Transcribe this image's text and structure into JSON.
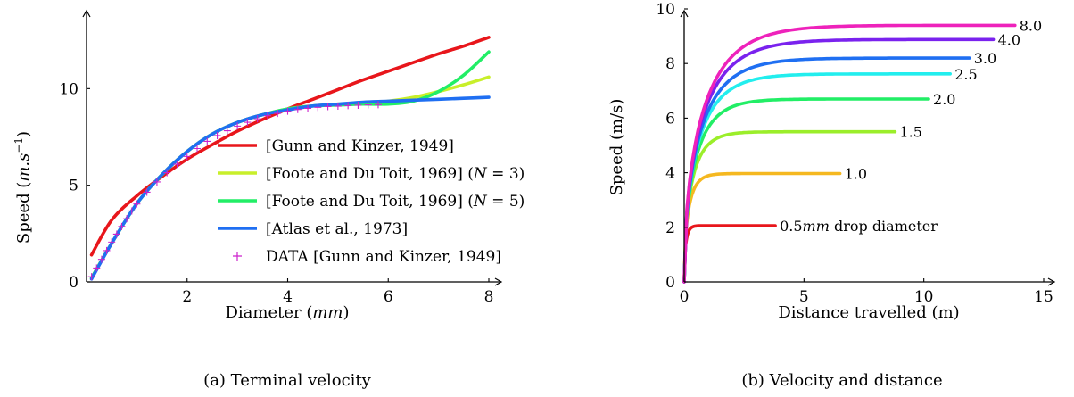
{
  "chart_data": [
    {
      "type": "line",
      "caption": "(a) Terminal velocity",
      "xlabel": "Diameter (mm)",
      "ylabel": "Speed (m.s⁻¹)",
      "xlim": [
        0,
        8
      ],
      "ylim": [
        0,
        13.2
      ],
      "xticks": [
        2,
        4,
        6,
        8
      ],
      "yticks": [
        0,
        5,
        10
      ],
      "grid": false,
      "legend_position": "bottom-right",
      "series": [
        {
          "name": "[Gunn and Kinzer, 1949]",
          "color": "#e8161b",
          "x": [
            0.1,
            0.5,
            1,
            1.5,
            2,
            2.5,
            3,
            3.5,
            4,
            4.5,
            5,
            5.5,
            6,
            6.5,
            7,
            7.5,
            8
          ],
          "y": [
            1.4,
            3.2,
            4.45,
            5.45,
            6.35,
            7.1,
            7.8,
            8.4,
            8.95,
            9.45,
            9.95,
            10.45,
            10.9,
            11.35,
            11.8,
            12.2,
            12.65
          ]
        },
        {
          "name": "[Foote and Du Toit, 1969] (N = 3)",
          "color": "#c8ef2a",
          "x": [
            0.1,
            0.5,
            1,
            1.5,
            2,
            2.5,
            3,
            3.5,
            4,
            4.5,
            5,
            5.5,
            6,
            6.5,
            7,
            7.5,
            8
          ],
          "y": [
            0.2,
            2.0,
            4.05,
            5.55,
            6.75,
            7.65,
            8.25,
            8.65,
            8.95,
            9.1,
            9.2,
            9.25,
            9.35,
            9.55,
            9.85,
            10.2,
            10.6
          ]
        },
        {
          "name": "[Foote and Du Toit, 1969] (N = 5)",
          "color": "#22ee66",
          "x": [
            0.1,
            0.5,
            1,
            1.5,
            2,
            2.5,
            3,
            3.5,
            4,
            4.5,
            5,
            5.5,
            6,
            6.5,
            7,
            7.5,
            8
          ],
          "y": [
            0.2,
            2.0,
            4.05,
            5.55,
            6.75,
            7.65,
            8.25,
            8.65,
            8.95,
            9.1,
            9.15,
            9.2,
            9.2,
            9.35,
            9.85,
            10.7,
            11.9
          ]
        },
        {
          "name": "[Atlas et al., 1973]",
          "color": "#1f6ff2",
          "x": [
            0.1,
            0.5,
            1,
            1.5,
            2,
            2.5,
            3,
            3.5,
            4,
            4.5,
            5,
            5.5,
            6,
            6.5,
            7,
            7.5,
            8
          ],
          "y": [
            0.15,
            2.0,
            4.05,
            5.55,
            6.75,
            7.65,
            8.25,
            8.65,
            8.9,
            9.1,
            9.2,
            9.3,
            9.35,
            9.4,
            9.45,
            9.5,
            9.55
          ]
        }
      ],
      "scatter": {
        "name": "DATA [Gunn and Kinzer, 1949]",
        "color": "#cc22cc",
        "x": [
          0.1,
          0.2,
          0.3,
          0.4,
          0.5,
          0.6,
          0.7,
          0.8,
          0.9,
          1.0,
          1.2,
          1.4,
          1.6,
          1.8,
          2.0,
          2.2,
          2.4,
          2.6,
          2.8,
          3.0,
          3.2,
          3.4,
          3.6,
          3.8,
          4.0,
          4.2,
          4.4,
          4.6,
          4.8,
          5.0,
          5.2,
          5.4,
          5.6,
          5.8
        ],
        "y": [
          0.27,
          0.72,
          1.17,
          1.62,
          2.06,
          2.47,
          2.87,
          3.27,
          3.67,
          4.03,
          4.64,
          5.17,
          5.65,
          6.09,
          6.49,
          6.9,
          7.27,
          7.57,
          7.82,
          8.06,
          8.26,
          8.44,
          8.6,
          8.72,
          8.83,
          8.92,
          8.98,
          9.03,
          9.07,
          9.09,
          9.12,
          9.14,
          9.16,
          9.17
        ]
      }
    },
    {
      "type": "line",
      "caption": "(b) Velocity and distance",
      "xlabel": "Distance travelled (m)",
      "ylabel": "Speed (m/s)",
      "xlim": [
        0,
        15
      ],
      "ylim": [
        0,
        10
      ],
      "xticks": [
        0,
        5,
        10,
        15
      ],
      "yticks": [
        0,
        2,
        4,
        6,
        8,
        10
      ],
      "grid": false,
      "series": [
        {
          "label": "0.5mm drop diameter",
          "label_main": "0.5",
          "label_unit": "mm",
          "label_rest": " drop diameter",
          "color": "#e8161b",
          "vmax": 2.06,
          "k": 4.5,
          "x_end": 3.8
        },
        {
          "label": "1.0",
          "color": "#f5b820",
          "vmax": 3.97,
          "k": 1.6,
          "x_end": 6.5
        },
        {
          "label": "1.5",
          "color": "#9bee2a",
          "vmax": 5.5,
          "k": 0.9,
          "x_end": 8.8
        },
        {
          "label": "2.0",
          "color": "#22ee66",
          "vmax": 6.7,
          "k": 0.62,
          "x_end": 10.2
        },
        {
          "label": "2.5",
          "color": "#22eeee",
          "vmax": 7.62,
          "k": 0.5,
          "x_end": 11.1
        },
        {
          "label": "3.0",
          "color": "#1f6ff2",
          "vmax": 8.2,
          "k": 0.44,
          "x_end": 11.9
        },
        {
          "label": "4.0",
          "color": "#7a22ee",
          "vmax": 8.88,
          "k": 0.4,
          "x_end": 12.9
        },
        {
          "label": "8.0",
          "color": "#ee22bb",
          "vmax": 9.4,
          "k": 0.37,
          "x_end": 13.8
        }
      ]
    }
  ]
}
